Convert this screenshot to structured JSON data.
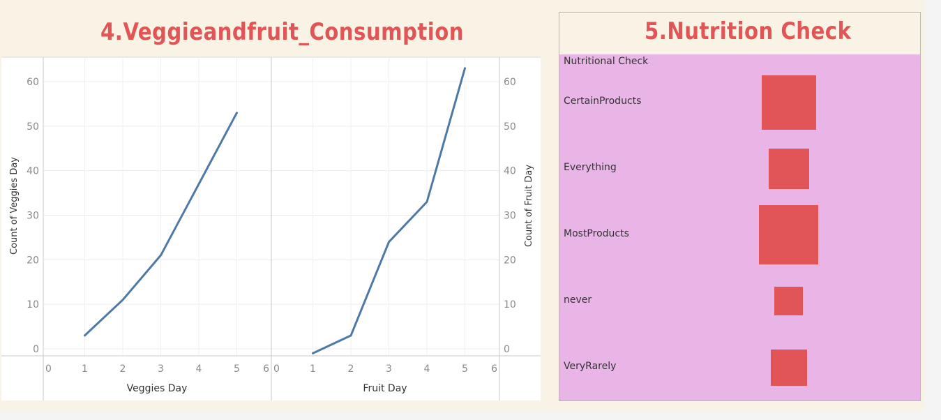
{
  "colors": {
    "accent": "#e15556",
    "line": "#4e79a7",
    "pink": "#e9b5e6",
    "background": "#f9f3e5"
  },
  "left_title": "4.Veggieandfruit_Consumption",
  "right_title": "5.Nutrition Check",
  "chart_data": [
    {
      "type": "line",
      "xlabel": "Veggies Day",
      "ylabel": "Count of Veggies Day",
      "x_ticks": [
        "0",
        "1",
        "2",
        "3",
        "4",
        "5",
        "6"
      ],
      "y_ticks": [
        "0",
        "10",
        "20",
        "30",
        "40",
        "50",
        "60"
      ],
      "xlim": [
        0,
        6
      ],
      "ylim": [
        0,
        60
      ],
      "x": [
        1,
        2,
        3,
        4,
        5
      ],
      "y": [
        3,
        11,
        21,
        37,
        53
      ]
    },
    {
      "type": "line",
      "xlabel": "Fruit Day",
      "ylabel": "Count of Fruit Day",
      "x_ticks": [
        "0",
        "1",
        "2",
        "3",
        "4",
        "5",
        "6"
      ],
      "y_ticks": [
        "0",
        "10",
        "20",
        "30",
        "40",
        "50",
        "60"
      ],
      "xlim": [
        0,
        6
      ],
      "ylim": [
        0,
        60
      ],
      "x": [
        1,
        2,
        3,
        4,
        5
      ],
      "y": [
        -1,
        3,
        24,
        33,
        63
      ]
    },
    {
      "type": "table",
      "header": "Nutritional Check",
      "categories": [
        "CertainProducts",
        "Everything",
        "MostProducts",
        "never",
        "VeryRarely"
      ],
      "values": [
        78,
        58,
        85,
        41,
        52
      ]
    }
  ]
}
